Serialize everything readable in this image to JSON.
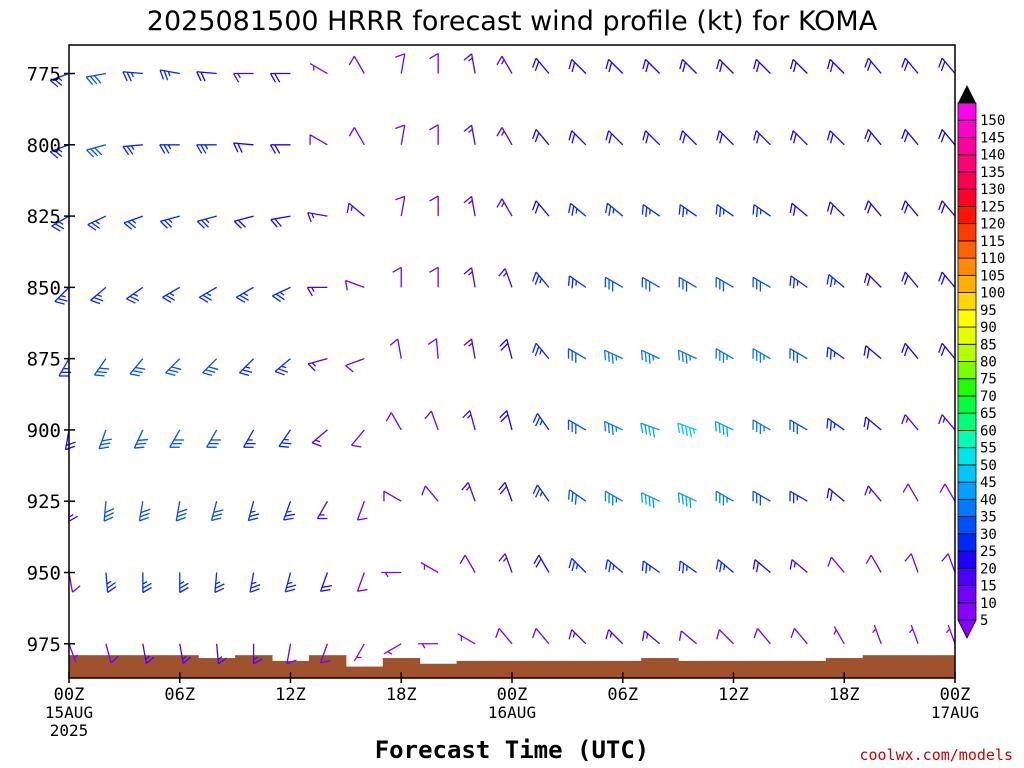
{
  "chart_data": {
    "type": "wind-barb time-height",
    "title": "2025081500 HRRR forecast wind profile (kt) for KOMA",
    "xlabel": "Forecast Time (UTC)",
    "ylabel": "",
    "credit": "coolwx.com/models",
    "x_ticks": [
      {
        "hour": 0,
        "label": "00Z",
        "sub": [
          "15AUG",
          "2025"
        ]
      },
      {
        "hour": 6,
        "label": "06Z",
        "sub": []
      },
      {
        "hour": 12,
        "label": "12Z",
        "sub": []
      },
      {
        "hour": 18,
        "label": "18Z",
        "sub": []
      },
      {
        "hour": 24,
        "label": "00Z",
        "sub": [
          "16AUG"
        ]
      },
      {
        "hour": 30,
        "label": "06Z",
        "sub": []
      },
      {
        "hour": 36,
        "label": "12Z",
        "sub": []
      },
      {
        "hour": 42,
        "label": "18Z",
        "sub": []
      },
      {
        "hour": 48,
        "label": "00Z",
        "sub": [
          "17AUG"
        ]
      }
    ],
    "x_range_hours": [
      0,
      48
    ],
    "y_axis": {
      "unit": "hPa",
      "ticks": [
        775,
        800,
        825,
        850,
        875,
        900,
        925,
        950,
        975
      ],
      "top": 765,
      "bottom": 987
    },
    "pressure_levels": [
      775,
      800,
      825,
      850,
      875,
      900,
      925,
      950,
      975
    ],
    "colorbar": {
      "levels": [
        5,
        10,
        15,
        20,
        25,
        30,
        35,
        40,
        45,
        50,
        55,
        60,
        65,
        70,
        75,
        80,
        85,
        90,
        95,
        100,
        105,
        110,
        115,
        120,
        125,
        130,
        135,
        140,
        145,
        150
      ],
      "colors": [
        "#8800ff",
        "#7000ff",
        "#4b00ff",
        "#1e00ff",
        "#0028ff",
        "#0050ff",
        "#0078ff",
        "#00a0ff",
        "#00c8ff",
        "#00e6e6",
        "#00ffb4",
        "#00ff78",
        "#00ff3c",
        "#1eff00",
        "#78ff00",
        "#b4ff00",
        "#e6ff00",
        "#ffff00",
        "#ffd700",
        "#ffaf00",
        "#ff8c00",
        "#ff6400",
        "#ff3c00",
        "#ff1400",
        "#ff0028",
        "#ff0050",
        "#ff0078",
        "#ff00a0",
        "#ff00c8",
        "#ff00f0"
      ]
    },
    "hours": [
      0,
      2,
      4,
      6,
      8,
      10,
      12,
      14,
      16,
      18,
      20,
      22,
      24,
      26,
      28,
      30,
      32,
      34,
      36,
      38,
      40,
      42,
      44,
      46,
      48
    ],
    "series": [
      {
        "level": 775,
        "speed": [
          25,
          30,
          25,
          25,
          20,
          15,
          20,
          5,
          10,
          10,
          10,
          15,
          15,
          20,
          20,
          20,
          20,
          20,
          20,
          20,
          20,
          20,
          20,
          20,
          20
        ],
        "direction": [
          250,
          260,
          275,
          280,
          275,
          270,
          270,
          300,
          330,
          10,
          0,
          350,
          330,
          320,
          315,
          315,
          315,
          315,
          315,
          315,
          315,
          315,
          320,
          320,
          320
        ]
      },
      {
        "level": 800,
        "speed": [
          25,
          30,
          25,
          25,
          25,
          20,
          20,
          10,
          10,
          10,
          10,
          15,
          15,
          20,
          20,
          20,
          20,
          20,
          20,
          20,
          20,
          20,
          20,
          20,
          20
        ],
        "direction": [
          250,
          255,
          265,
          270,
          270,
          275,
          270,
          300,
          330,
          10,
          0,
          350,
          330,
          320,
          315,
          315,
          315,
          315,
          315,
          315,
          315,
          315,
          320,
          320,
          320
        ]
      },
      {
        "level": 825,
        "speed": [
          25,
          25,
          25,
          25,
          25,
          20,
          20,
          15,
          15,
          10,
          10,
          15,
          15,
          20,
          25,
          25,
          25,
          25,
          25,
          25,
          20,
          20,
          20,
          20,
          20
        ],
        "direction": [
          240,
          245,
          250,
          255,
          255,
          255,
          260,
          280,
          310,
          10,
          0,
          350,
          330,
          320,
          310,
          310,
          305,
          305,
          305,
          305,
          310,
          315,
          320,
          320,
          320
        ]
      },
      {
        "level": 850,
        "speed": [
          25,
          25,
          25,
          25,
          25,
          25,
          25,
          15,
          10,
          10,
          10,
          15,
          15,
          25,
          25,
          30,
          30,
          30,
          30,
          30,
          25,
          25,
          20,
          20,
          20
        ],
        "direction": [
          225,
          230,
          235,
          240,
          240,
          240,
          245,
          270,
          290,
          0,
          0,
          350,
          340,
          320,
          305,
          300,
          300,
          300,
          300,
          300,
          305,
          310,
          315,
          320,
          320
        ]
      },
      {
        "level": 875,
        "speed": [
          25,
          30,
          30,
          30,
          30,
          25,
          25,
          15,
          10,
          10,
          10,
          15,
          20,
          25,
          30,
          35,
          35,
          35,
          35,
          35,
          30,
          25,
          20,
          20,
          20
        ],
        "direction": [
          210,
          215,
          220,
          225,
          225,
          225,
          230,
          255,
          250,
          350,
          355,
          350,
          345,
          320,
          300,
          295,
          295,
          295,
          300,
          300,
          300,
          305,
          310,
          320,
          320
        ]
      },
      {
        "level": 900,
        "speed": [
          20,
          30,
          30,
          30,
          30,
          25,
          25,
          15,
          10,
          10,
          10,
          15,
          20,
          25,
          30,
          35,
          40,
          45,
          40,
          35,
          30,
          25,
          20,
          15,
          15
        ],
        "direction": [
          190,
          200,
          205,
          210,
          210,
          210,
          215,
          230,
          220,
          330,
          340,
          345,
          345,
          325,
          300,
          295,
          290,
          290,
          295,
          300,
          300,
          305,
          310,
          320,
          320
        ]
      },
      {
        "level": 925,
        "speed": [
          15,
          30,
          30,
          30,
          30,
          25,
          25,
          15,
          10,
          10,
          10,
          15,
          20,
          25,
          30,
          35,
          40,
          40,
          35,
          30,
          25,
          20,
          15,
          10,
          10
        ],
        "direction": [
          180,
          185,
          190,
          190,
          195,
          195,
          200,
          210,
          200,
          300,
          320,
          340,
          340,
          325,
          305,
          300,
          295,
          295,
          300,
          300,
          300,
          310,
          320,
          330,
          330
        ]
      },
      {
        "level": 950,
        "speed": [
          10,
          25,
          25,
          25,
          25,
          25,
          25,
          20,
          10,
          5,
          5,
          10,
          15,
          20,
          25,
          25,
          25,
          25,
          25,
          20,
          15,
          10,
          10,
          10,
          10
        ],
        "direction": [
          170,
          175,
          180,
          180,
          185,
          190,
          195,
          200,
          200,
          270,
          300,
          330,
          340,
          330,
          315,
          310,
          305,
          305,
          310,
          310,
          310,
          320,
          330,
          340,
          340
        ]
      },
      {
        "level": 975,
        "speed": [
          5,
          10,
          15,
          15,
          15,
          15,
          10,
          10,
          5,
          5,
          5,
          5,
          10,
          10,
          15,
          15,
          15,
          10,
          10,
          10,
          10,
          5,
          5,
          5,
          5
        ],
        "direction": [
          160,
          165,
          170,
          170,
          175,
          180,
          190,
          200,
          210,
          240,
          270,
          300,
          320,
          320,
          315,
          315,
          310,
          310,
          315,
          320,
          320,
          330,
          340,
          340,
          340
        ]
      }
    ],
    "terrain_pressure": [
      979,
      979,
      979,
      979,
      980,
      979,
      981,
      979,
      983,
      980,
      982,
      981,
      981,
      981,
      981,
      981,
      980,
      981,
      981,
      981,
      981,
      980,
      979,
      979,
      979
    ]
  }
}
